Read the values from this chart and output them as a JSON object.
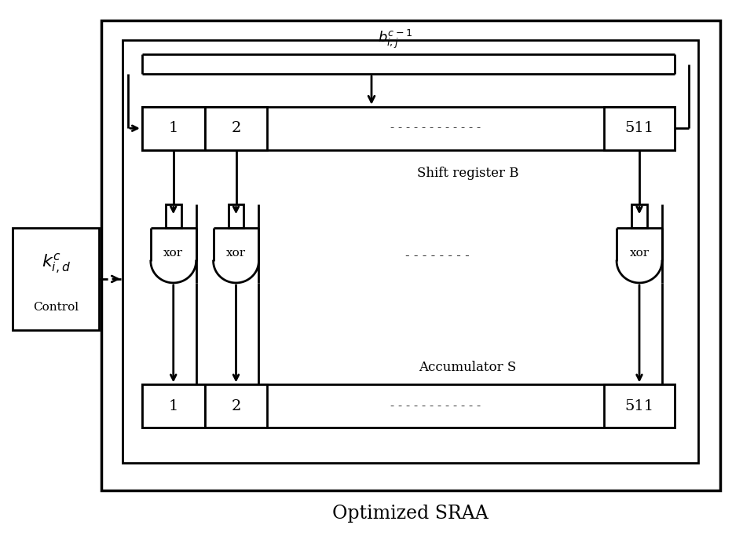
{
  "bg_color": "#ffffff",
  "line_color": "#000000",
  "title": "Optimized SRAA",
  "title_fontsize": 17,
  "shift_reg_label": "Shift register B",
  "accum_label": "Accumulator S",
  "control_label": "Control"
}
